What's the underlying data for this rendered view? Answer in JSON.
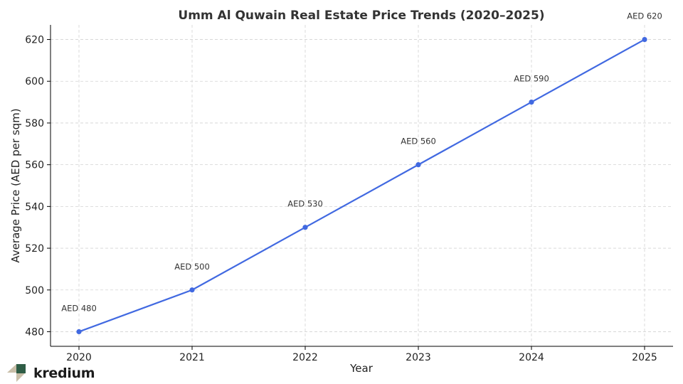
{
  "chart_data": {
    "type": "line",
    "title": "Umm Al Quwain Real Estate Price Trends (2020–2025)",
    "xlabel": "Year",
    "ylabel": "Average Price (AED per sqm)",
    "x": [
      "2020",
      "2021",
      "2022",
      "2023",
      "2024",
      "2025"
    ],
    "series": [
      {
        "values": [
          480,
          500,
          530,
          560,
          590,
          620
        ],
        "color": "#4169e1"
      }
    ],
    "data_labels": [
      "AED 480",
      "AED 500",
      "AED 530",
      "AED 560",
      "AED 590",
      "AED 620"
    ],
    "y_ticks": [
      480,
      500,
      520,
      540,
      560,
      580,
      600,
      620
    ],
    "ylim": [
      473,
      627
    ],
    "grid": true,
    "marker": "circle"
  },
  "logo": {
    "name": "kredium",
    "colors": [
      "#2f5d46",
      "#c9bfa9"
    ]
  }
}
